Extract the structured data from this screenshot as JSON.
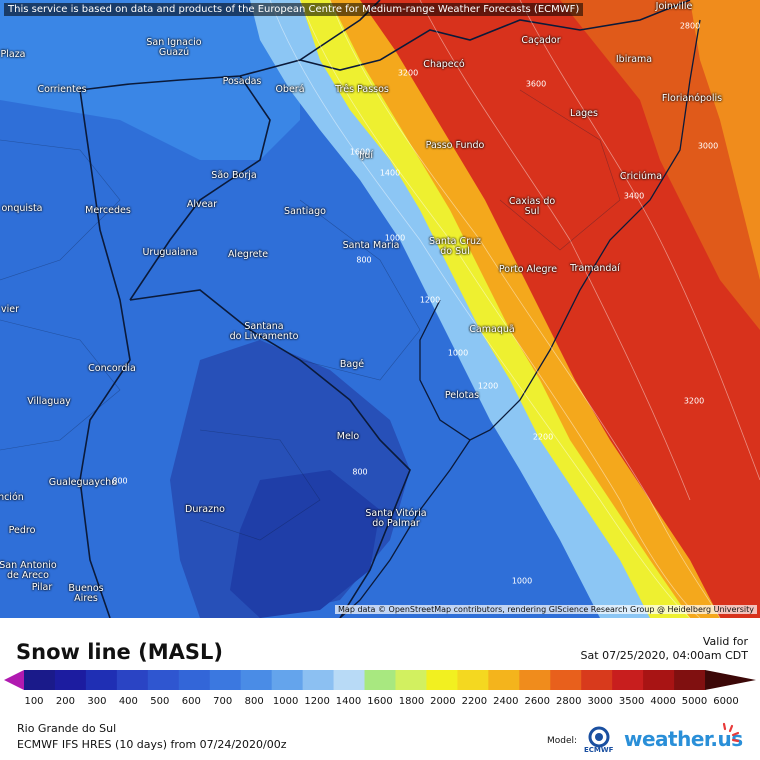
{
  "map": {
    "disclaimer": "This service is based on data and products of the European Centre for Medium-range Weather Forecasts (ECMWF)",
    "attribution": "Map data © OpenStreetMap contributors, rendering GIScience Research Group @ Heidelberg University",
    "cities": [
      {
        "id": "joinville",
        "label": "Joinville"
      },
      {
        "id": "san-ignacio-guazu",
        "label": "San Ignacio\nGuazú"
      },
      {
        "id": "cacador",
        "label": "Caçador"
      },
      {
        "id": "plaza",
        "label": "Plaza"
      },
      {
        "id": "chapeco",
        "label": "Chapecó"
      },
      {
        "id": "ibirama",
        "label": "Ibirama"
      },
      {
        "id": "posadas",
        "label": "Posadas"
      },
      {
        "id": "obera",
        "label": "Oberá"
      },
      {
        "id": "tres-passos",
        "label": "Três Passos"
      },
      {
        "id": "corrientes",
        "label": "Corrientes"
      },
      {
        "id": "florianopolis",
        "label": "Florianópolis"
      },
      {
        "id": "lages",
        "label": "Lages"
      },
      {
        "id": "passo-fundo",
        "label": "Passo Fundo"
      },
      {
        "id": "ijui",
        "label": "Ijuí"
      },
      {
        "id": "sao-borja",
        "label": "São Borja"
      },
      {
        "id": "criciuma",
        "label": "Criciúma"
      },
      {
        "id": "alvear",
        "label": "Alvear"
      },
      {
        "id": "caxias-do-sul",
        "label": "Caxias do\nSul"
      },
      {
        "id": "conquista",
        "label": "onquista"
      },
      {
        "id": "mercedes",
        "label": "Mercedes"
      },
      {
        "id": "santiago",
        "label": "Santiago"
      },
      {
        "id": "santa-maria",
        "label": "Santa Maria"
      },
      {
        "id": "santa-cruz-do-sul",
        "label": "Santa Cruz\ndo Sul"
      },
      {
        "id": "uruguaiana",
        "label": "Uruguaiana"
      },
      {
        "id": "alegrete",
        "label": "Alegrete"
      },
      {
        "id": "porto-alegre",
        "label": "Porto Alegre"
      },
      {
        "id": "tramandai",
        "label": "Tramandaí"
      },
      {
        "id": "vier",
        "label": "vier"
      },
      {
        "id": "santana-do-livramento",
        "label": "Santana\ndo Livramento"
      },
      {
        "id": "camaqua",
        "label": "Camaquã"
      },
      {
        "id": "concordia",
        "label": "Concordia"
      },
      {
        "id": "bage",
        "label": "Bagé"
      },
      {
        "id": "villaguay",
        "label": "Villaguay"
      },
      {
        "id": "pelotas",
        "label": "Pelotas"
      },
      {
        "id": "melo",
        "label": "Melo"
      },
      {
        "id": "gualeguaychu",
        "label": "Gualeguaychú"
      },
      {
        "id": "encion",
        "label": "ención"
      },
      {
        "id": "durazno",
        "label": "Durazno"
      },
      {
        "id": "santa-vitoria-do-palmar",
        "label": "Santa Vitória\ndo Palmar"
      },
      {
        "id": "pedro",
        "label": "Pedro"
      },
      {
        "id": "san-antonio-de-areco",
        "label": "San Antonio\nde Areco"
      },
      {
        "id": "pilar",
        "label": "Pilar"
      },
      {
        "id": "buenos-aires",
        "label": "Buenos\nAires"
      }
    ],
    "contour_labels": [
      "2800",
      "3200",
      "3600",
      "3000",
      "3400",
      "1600",
      "1400",
      "1000",
      "800",
      "1200",
      "1000",
      "1200",
      "2200",
      "800",
      "800",
      "3200",
      "1000"
    ]
  },
  "legend": {
    "title": "Snow line (MASL)",
    "valid_label": "Valid for",
    "valid_date": "Sat 07/25/2020, 04:00am CDT",
    "levels": [
      "100",
      "200",
      "300",
      "400",
      "500",
      "600",
      "700",
      "800",
      "1000",
      "1200",
      "1400",
      "1600",
      "1800",
      "2000",
      "2200",
      "2400",
      "2600",
      "2800",
      "3000",
      "3500",
      "4000",
      "5000",
      "6000"
    ],
    "colors": [
      "#b01ab0",
      "#1a1a8a",
      "#1c1ca0",
      "#1f2fb4",
      "#2a44c4",
      "#2f56d0",
      "#3366d8",
      "#3b78e0",
      "#4a8ce6",
      "#64a4ec",
      "#8cc0f2",
      "#b8daf6",
      "#a8e880",
      "#d2f060",
      "#f2f020",
      "#f4d820",
      "#f4b41c",
      "#f08c1c",
      "#e8601c",
      "#d83a1c",
      "#c81e1e",
      "#a81414",
      "#801010",
      "#3c0808"
    ],
    "region": "Rio Grande do Sul",
    "model_run": "ECMWF IFS HRES (10 days) from 07/24/2020/00z",
    "model_label": "Model:",
    "ecmwf_text": "ECMWF",
    "brand": "weather.us"
  }
}
